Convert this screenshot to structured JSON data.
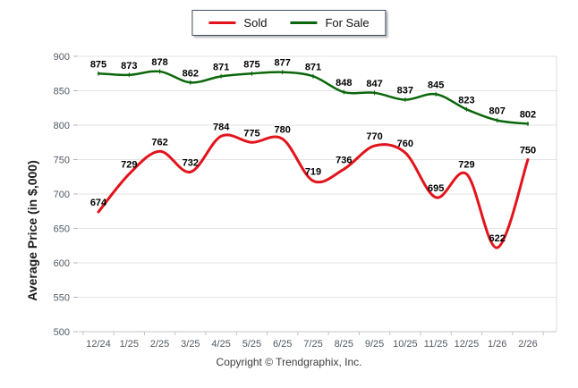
{
  "legend": {
    "items": [
      {
        "label": "Sold",
        "color": "#e3131b"
      },
      {
        "label": "For Sale",
        "color": "#0a660a"
      }
    ]
  },
  "footer": {
    "copyright": "Copyright © Trendgraphix, Inc."
  },
  "chart_data": {
    "type": "line",
    "title": "",
    "xlabel": "",
    "ylabel": "Average Price (in $,000)",
    "categories": [
      "12/24",
      "1/25",
      "2/25",
      "3/25",
      "4/25",
      "5/25",
      "6/25",
      "7/25",
      "8/25",
      "9/25",
      "10/25",
      "11/25",
      "12/25",
      "1/26",
      "2/26"
    ],
    "series": [
      {
        "name": "Sold",
        "color": "#e3131b",
        "line_width": 3,
        "marker": "none",
        "values": [
          674,
          729,
          762,
          732,
          784,
          775,
          780,
          719,
          736,
          770,
          760,
          695,
          729,
          622,
          750
        ]
      },
      {
        "name": "For Sale",
        "color": "#0a660a",
        "line_width": 2.5,
        "marker": "tick",
        "values": [
          875,
          873,
          878,
          862,
          871,
          875,
          877,
          871,
          848,
          847,
          837,
          845,
          823,
          807,
          802
        ]
      }
    ],
    "ylim": [
      500,
      900
    ],
    "ytick_step": 50,
    "grid": "horizontal",
    "legend_position": "top-center",
    "data_labels": "shown"
  }
}
